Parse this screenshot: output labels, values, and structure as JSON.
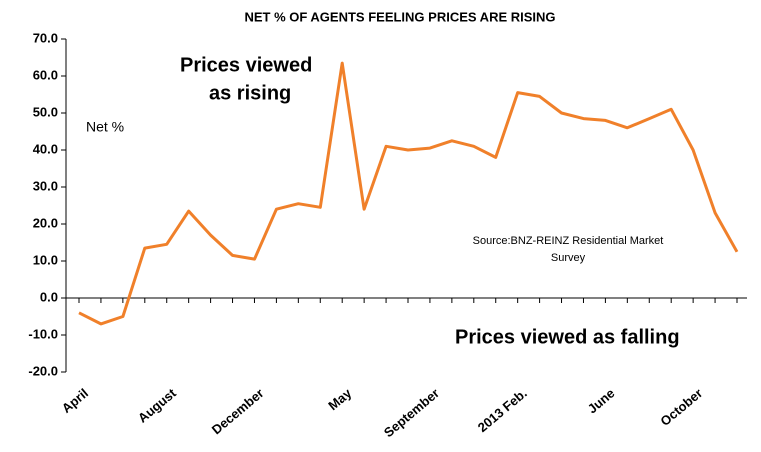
{
  "chart_data": {
    "type": "line",
    "title": "NET % OF AGENTS FEELING PRICES ARE RISING",
    "annotations": [
      "Prices viewed",
      "as rising",
      "Net %",
      "Prices viewed as falling",
      "Source:BNZ-REINZ Residential Market",
      "Survey"
    ],
    "categories": [
      "April",
      null,
      null,
      null,
      "August",
      null,
      null,
      null,
      "December",
      null,
      null,
      null,
      "May",
      null,
      null,
      null,
      "September",
      null,
      null,
      null,
      "2013 Feb.",
      null,
      null,
      null,
      "June",
      null,
      null,
      null,
      "October",
      null,
      null
    ],
    "series": [
      {
        "name": "Net %",
        "color": "#f0802a",
        "values": [
          -4,
          -7,
          -5,
          13.5,
          14.5,
          23.5,
          17,
          11.5,
          10.5,
          24,
          25.5,
          24.5,
          63.5,
          24,
          41,
          40,
          40.5,
          42.5,
          41,
          38,
          55.5,
          54.5,
          50,
          48.5,
          48,
          46,
          48.5,
          51,
          40,
          23,
          12.5
        ]
      }
    ],
    "ylim": [
      -20,
      70
    ],
    "yticks": [
      {
        "value": -20,
        "label": "-20.0"
      },
      {
        "value": -10,
        "label": "-10.0"
      },
      {
        "value": 0,
        "label": "0.0"
      },
      {
        "value": 10,
        "label": "10.0"
      },
      {
        "value": 20,
        "label": "20.0"
      },
      {
        "value": 30,
        "label": "30.0"
      },
      {
        "value": 40,
        "label": "40.0"
      },
      {
        "value": 50,
        "label": "50.0"
      },
      {
        "value": 60,
        "label": "60.0"
      },
      {
        "value": 70,
        "label": "70.0"
      }
    ]
  }
}
